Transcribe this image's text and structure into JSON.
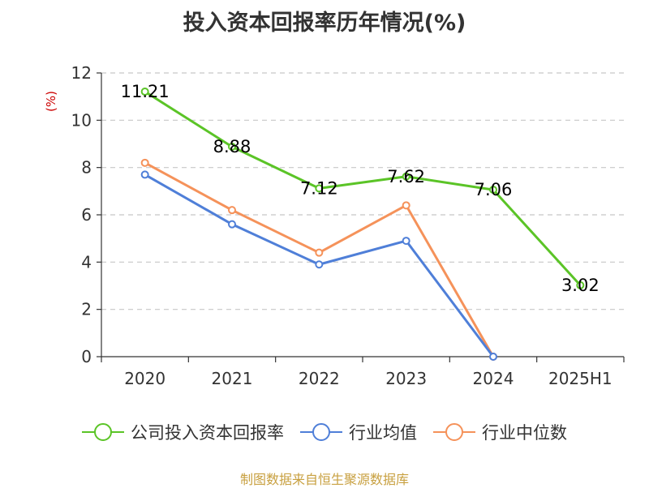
{
  "chart_data": {
    "type": "line",
    "title": "投入资本回报率历年情况(%)",
    "ylabel": "(%)",
    "categories": [
      "2020",
      "2021",
      "2022",
      "2023",
      "2024",
      "2025H1"
    ],
    "ylim": [
      0,
      12
    ],
    "yticks": [
      0,
      2,
      4,
      6,
      8,
      10,
      12
    ],
    "grid": true,
    "legend_position": "bottom",
    "series": [
      {
        "name": "公司投入资本回报率",
        "color": "#5bc427",
        "values": [
          11.21,
          8.88,
          7.12,
          7.62,
          7.06,
          3.02
        ],
        "labels": [
          "11.21",
          "8.88",
          "7.12",
          "7.62",
          "7.06",
          "3.02"
        ]
      },
      {
        "name": "行业均值",
        "color": "#4f7fd8",
        "values": [
          7.7,
          5.6,
          3.9,
          4.9,
          0.0,
          null
        ]
      },
      {
        "name": "行业中位数",
        "color": "#f5925a",
        "values": [
          8.2,
          6.2,
          4.4,
          6.4,
          0.0,
          null
        ]
      }
    ]
  },
  "footer": "制图数据来自恒生聚源数据库"
}
